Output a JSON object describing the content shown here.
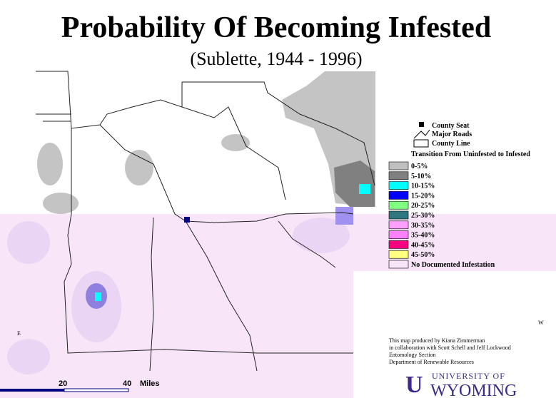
{
  "header": {
    "title": "Probability Of Becoming Infested",
    "subtitle": "(Sublette, 1944 - 1996)"
  },
  "legend": {
    "symbols": [
      "County Seat",
      "Major Roads",
      "County Line"
    ],
    "heading": "Transition From Uninfested to Infested",
    "items": [
      {
        "label": "0-5%",
        "color": "#c0c0c0"
      },
      {
        "label": "5-10%",
        "color": "#808080"
      },
      {
        "label": "10-15%",
        "color": "#00ffff"
      },
      {
        "label": "15-20%",
        "color": "#0000ff"
      },
      {
        "label": "20-25%",
        "color": "#80ff80"
      },
      {
        "label": "25-30%",
        "color": "#2f7880"
      },
      {
        "label": "30-35%",
        "color": "#ffa0ff"
      },
      {
        "label": "35-40%",
        "color": "#ff80ff"
      },
      {
        "label": "40-45%",
        "color": "#ff0080"
      },
      {
        "label": "45-50%",
        "color": "#ffff80"
      },
      {
        "label": "No Documented Infestation",
        "color": "#f8e6f8"
      }
    ]
  },
  "credits": [
    "This map produced by Kiana Zimmerman",
    "in collaboration with Scott Schell and Jeff Lockwood",
    "Entomology Section",
    "Department of Renewable Resources"
  ],
  "scale": {
    "ticks": [
      "20",
      "40"
    ],
    "unit": "Miles"
  },
  "compass": {
    "left": "E",
    "right": "W"
  },
  "logo": {
    "line1": "UNIVERSITY OF",
    "line2": "WYOMING"
  }
}
